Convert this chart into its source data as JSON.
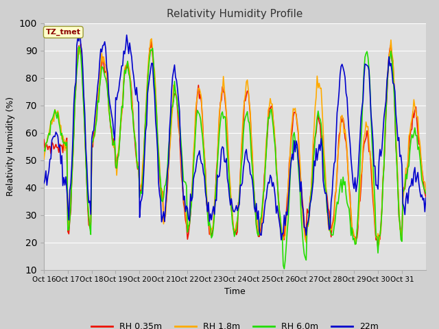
{
  "title": "Relativity Humidity Profile",
  "xlabel": "Time",
  "ylabel": "Relativity Humidity (%)",
  "ylim": [
    10,
    100
  ],
  "yticks": [
    10,
    20,
    30,
    40,
    50,
    60,
    70,
    80,
    90,
    100
  ],
  "colors": {
    "RH 0.35m": "#ee1100",
    "RH 1.8m": "#ffaa00",
    "RH 6.0m": "#22dd00",
    "22m": "#0000cc"
  },
  "x_tick_labels": [
    "Oct 16",
    "Oct 17",
    "Oct 18",
    "Oct 19",
    "Oct 20",
    "Oct 21",
    "Oct 22",
    "Oct 23",
    "Oct 24",
    "Oct 25",
    "Oct 26",
    "Oct 27",
    "Oct 28",
    "Oct 29",
    "Oct 30",
    "Oct 31"
  ],
  "annotation_text": "TZ_tmet",
  "fig_bg": "#d0d0d0",
  "plot_bg": "#e0e0e0",
  "grid_color": "#ffffff",
  "line_width": 1.2,
  "n_days": 16,
  "n_per_day": 24,
  "peak_035": [
    55,
    93,
    86,
    85,
    91,
    75,
    75,
    76,
    76,
    70,
    68,
    65,
    65,
    60,
    90,
    68
  ],
  "low_035": [
    55,
    24,
    55,
    47,
    36,
    28,
    23,
    24,
    23,
    23,
    23,
    30,
    24,
    20,
    22,
    38
  ],
  "peak_18": [
    67,
    93,
    87,
    86,
    93,
    77,
    77,
    77,
    77,
    71,
    70,
    80,
    66,
    62,
    93,
    70
  ],
  "low_18": [
    55,
    25,
    55,
    48,
    38,
    28,
    24,
    25,
    24,
    24,
    20,
    25,
    24,
    21,
    22,
    39
  ],
  "peak_60": [
    67,
    91,
    84,
    84,
    91,
    75,
    68,
    68,
    68,
    68,
    59,
    68,
    42,
    89,
    89,
    60
  ],
  "low_60": [
    55,
    24,
    55,
    47,
    36,
    39,
    24,
    23,
    23,
    24,
    11,
    26,
    23,
    21,
    21,
    38
  ],
  "peak_22m": [
    60,
    97,
    92,
    92,
    84,
    84,
    52,
    52,
    52,
    45,
    55,
    55,
    85,
    85,
    85,
    45
  ],
  "low_22m": [
    42,
    30,
    60,
    72,
    30,
    30,
    30,
    30,
    30,
    23,
    25,
    27,
    40,
    39,
    50,
    34
  ]
}
